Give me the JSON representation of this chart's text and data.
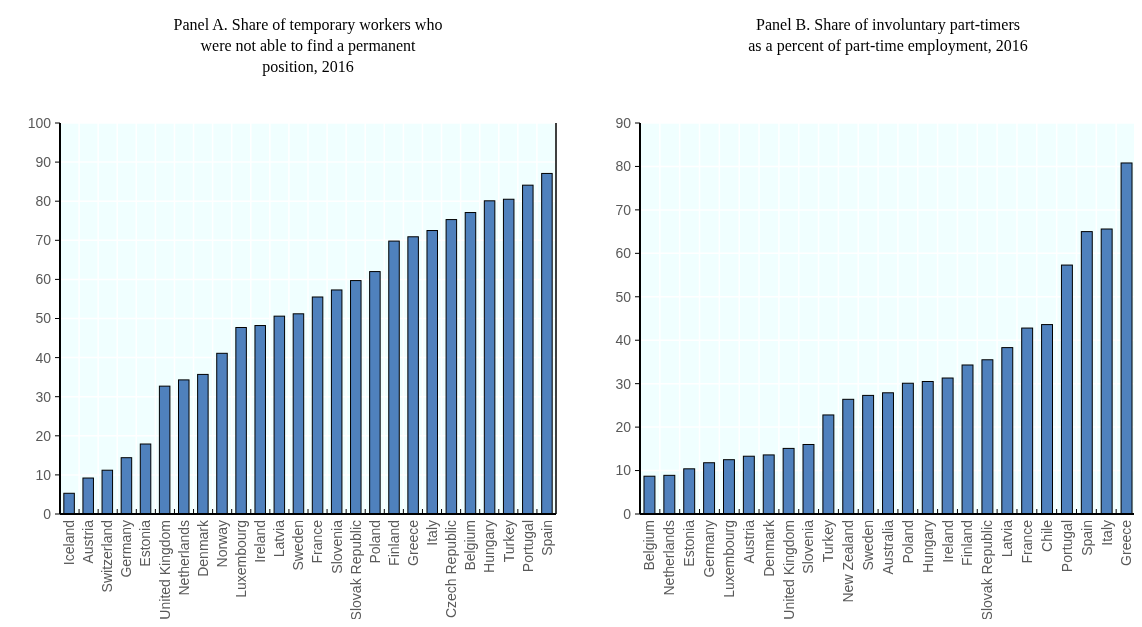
{
  "chart_data": [
    {
      "type": "bar",
      "title": "Panel A. Share of temporary workers who were not able to find a permanent position, 2016",
      "categories": [
        "Iceland",
        "Austria",
        "Switzerland",
        "Germany",
        "Estonia",
        "United Kingdom",
        "Netherlands",
        "Denmark",
        "Norway",
        "Luxembourg",
        "Ireland",
        "Latvia",
        "Sweden",
        "France",
        "Slovenia",
        "Slovak Republic",
        "Poland",
        "Finland",
        "Greece",
        "Italy",
        "Czech Republic",
        "Belgium",
        "Hungary",
        "Turkey",
        "Portugal",
        "Spain"
      ],
      "values": [
        5.3,
        9.2,
        11.2,
        14.4,
        17.9,
        32.7,
        34.3,
        35.7,
        41.1,
        47.7,
        48.2,
        50.6,
        51.2,
        55.5,
        57.3,
        59.7,
        62.0,
        69.8,
        70.9,
        72.5,
        75.3,
        77.1,
        80.1,
        80.5,
        84.1,
        87.1
      ],
      "color": "#4f81bd",
      "ylim": [
        0,
        100
      ],
      "yticks": [
        0,
        10,
        20,
        30,
        40,
        50,
        60,
        70,
        80,
        90,
        100
      ],
      "grid": true
    },
    {
      "type": "bar",
      "title": "Panel B. Share of involuntary part-timers as a percent of part-time employment, 2016",
      "categories": [
        "Belgium",
        "Netherlands",
        "Estonia",
        "Germany",
        "Luxembourg",
        "Austria",
        "Denmark",
        "United Kingdom",
        "Slovenia",
        "Turkey",
        "New Zealand",
        "Sweden",
        "Australia",
        "Poland",
        "Hungary",
        "Ireland",
        "Finland",
        "Slovak Republic",
        "Latvia",
        "France",
        "Chile",
        "Portugal",
        "Spain",
        "Italy",
        "Greece"
      ],
      "values": [
        8.7,
        8.9,
        10.4,
        11.8,
        12.5,
        13.3,
        13.6,
        15.1,
        16.0,
        22.8,
        26.4,
        27.3,
        27.9,
        30.1,
        30.5,
        31.3,
        34.3,
        35.5,
        38.3,
        42.8,
        43.6,
        57.3,
        65.0,
        65.6,
        80.8
      ],
      "color": "#4f81bd",
      "ylim": [
        0,
        90
      ],
      "yticks": [
        0,
        10,
        20,
        30,
        40,
        50,
        60,
        70,
        80,
        90
      ],
      "grid": true
    }
  ]
}
